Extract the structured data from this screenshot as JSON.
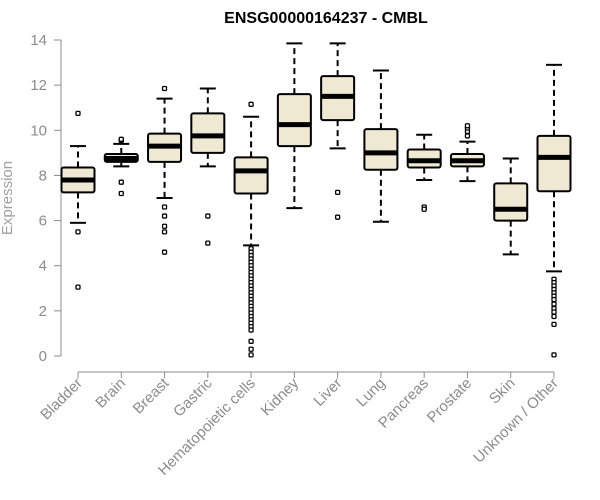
{
  "chart_data": {
    "type": "box",
    "title": "ENSG00000164237 - CMBL",
    "xlabel": "",
    "ylabel": "Expression",
    "ylim": [
      0,
      14
    ],
    "yticks": [
      0,
      2,
      4,
      6,
      8,
      10,
      12,
      14
    ],
    "box_fill": "#efe8d2",
    "categories": [
      "Bladder",
      "Brain",
      "Breast",
      "Gastric",
      "Hematopoietic cells",
      "Kidney",
      "Liver",
      "Lung",
      "Pancreas",
      "Prostate",
      "Skin",
      "Unknown / Other"
    ],
    "boxes": [
      {
        "whisker_low": 5.9,
        "q1": 7.25,
        "median": 7.8,
        "q3": 8.35,
        "whisker_high": 9.3,
        "outliers": [
          10.75,
          5.5,
          3.05
        ]
      },
      {
        "whisker_low": 8.4,
        "q1": 8.6,
        "median": 8.75,
        "q3": 8.95,
        "whisker_high": 9.4,
        "outliers": [
          9.55,
          9.6,
          7.7,
          7.2
        ]
      },
      {
        "whisker_low": 7.0,
        "q1": 8.6,
        "median": 9.3,
        "q3": 9.85,
        "whisker_high": 11.4,
        "outliers": [
          11.85,
          6.6,
          6.2,
          5.75,
          5.5,
          4.6
        ]
      },
      {
        "whisker_low": 8.4,
        "q1": 9.0,
        "median": 9.75,
        "q3": 10.75,
        "whisker_high": 11.85,
        "outliers": [
          6.2,
          5.0
        ]
      },
      {
        "whisker_low": 4.9,
        "q1": 7.2,
        "median": 8.2,
        "q3": 8.8,
        "whisker_high": 10.6,
        "outliers": [
          11.15,
          4.75,
          4.6,
          4.45,
          4.3,
          4.15,
          4.0,
          3.85,
          3.7,
          3.55,
          3.4,
          3.25,
          3.1,
          2.95,
          2.8,
          2.65,
          2.5,
          2.35,
          2.2,
          2.05,
          1.9,
          1.75,
          1.6,
          1.45,
          1.3,
          1.15,
          0.65,
          0.3,
          0.05
        ]
      },
      {
        "whisker_low": 6.55,
        "q1": 9.3,
        "median": 10.25,
        "q3": 11.6,
        "whisker_high": 13.85,
        "outliers": []
      },
      {
        "whisker_low": 9.2,
        "q1": 10.45,
        "median": 11.5,
        "q3": 12.4,
        "whisker_high": 13.85,
        "outliers": [
          7.25,
          6.15
        ]
      },
      {
        "whisker_low": 5.95,
        "q1": 8.25,
        "median": 9.0,
        "q3": 10.05,
        "whisker_high": 12.65,
        "outliers": []
      },
      {
        "whisker_low": 7.8,
        "q1": 8.35,
        "median": 8.65,
        "q3": 9.15,
        "whisker_high": 9.8,
        "outliers": [
          6.6,
          6.5
        ]
      },
      {
        "whisker_low": 7.75,
        "q1": 8.4,
        "median": 8.65,
        "q3": 8.95,
        "whisker_high": 9.5,
        "outliers": [
          9.75,
          9.95,
          10.1,
          10.2
        ]
      },
      {
        "whisker_low": 4.5,
        "q1": 6.0,
        "median": 6.5,
        "q3": 7.65,
        "whisker_high": 8.75,
        "outliers": []
      },
      {
        "whisker_low": 3.75,
        "q1": 7.3,
        "median": 8.8,
        "q3": 9.75,
        "whisker_high": 12.9,
        "outliers": [
          3.4,
          3.25,
          3.1,
          2.95,
          2.8,
          2.65,
          2.5,
          2.3,
          2.1,
          1.95,
          1.75,
          1.4,
          0.05
        ]
      }
    ]
  }
}
